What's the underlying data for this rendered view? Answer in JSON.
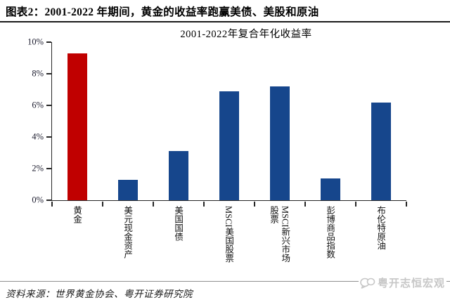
{
  "header": {
    "figure_title": "图表2：2001-2022 年期间，黄金的收益率跑赢美债、美股和原油"
  },
  "chart_data": {
    "type": "bar",
    "title": "2001-2022年复合年化收益率",
    "categories": [
      "黄金",
      "美元现金资产",
      "美国国债",
      "MSCI美国股票",
      "MSCI新兴市场\n股票",
      "彭博商品指数",
      "布伦特原油"
    ],
    "values": [
      9.3,
      1.3,
      3.1,
      6.9,
      7.2,
      1.4,
      6.2
    ],
    "unit": "%",
    "ylim": [
      0,
      10
    ],
    "yticks": [
      0,
      2,
      4,
      6,
      8,
      10
    ],
    "highlight_index": 0,
    "colors": {
      "highlight": "#C00000",
      "default": "#16468C",
      "axis": "#262626"
    },
    "grid": false,
    "legend_position": "none"
  },
  "footer": {
    "source": "资料来源：世界黄金协会、粤开证券研究院",
    "watermark": "粤开志恒宏观"
  }
}
